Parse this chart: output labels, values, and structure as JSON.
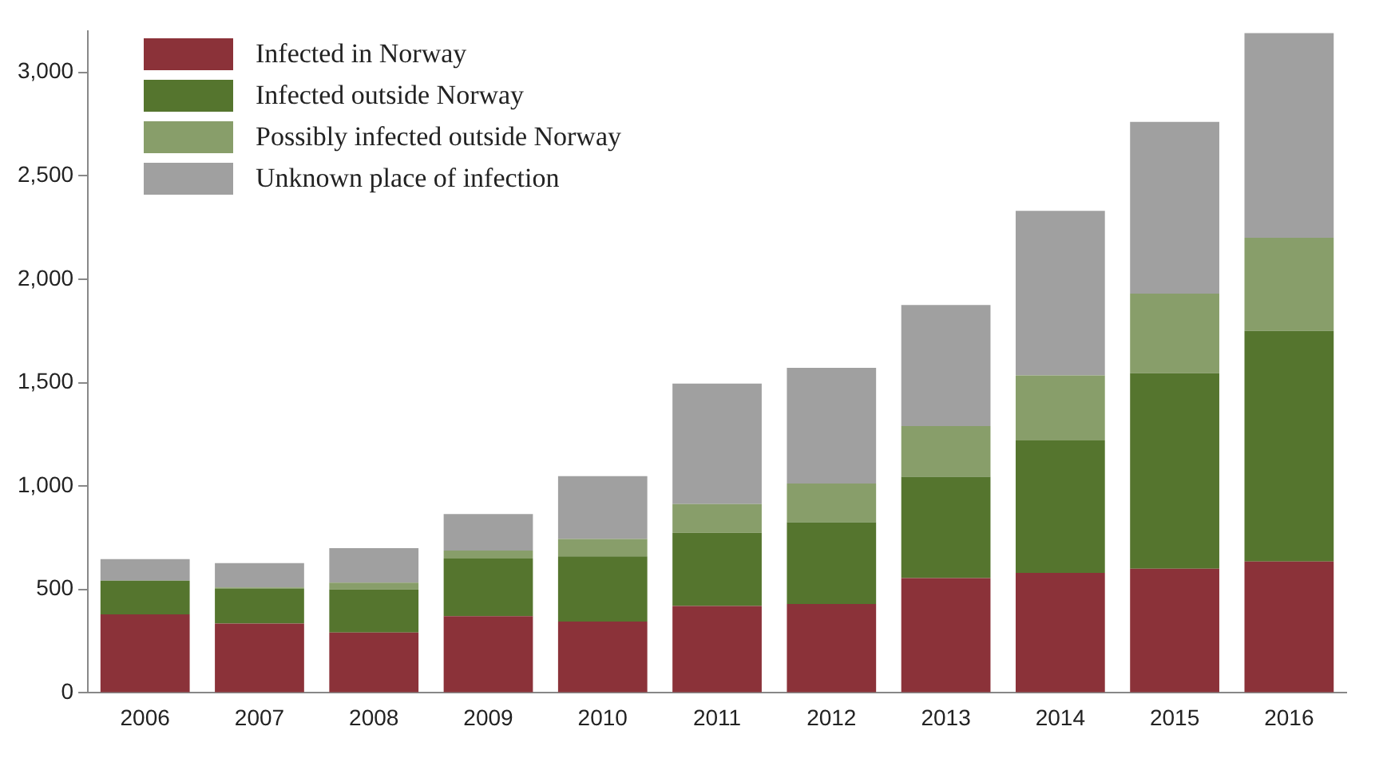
{
  "chart_data": {
    "type": "bar",
    "stacked": true,
    "legend": "top left",
    "grid": false,
    "categories": [
      "2006",
      "2007",
      "2008",
      "2009",
      "2010",
      "2011",
      "2012",
      "2013",
      "2014",
      "2015",
      "2016"
    ],
    "ylim": [
      0,
      3200
    ],
    "yticks": [
      0,
      {
        "value": 500,
        "label": "500"
      },
      {
        "value": 1000,
        "label": "1,000"
      },
      {
        "value": 1500,
        "label": "1,500"
      },
      {
        "value": 2000,
        "label": "2,000"
      },
      {
        "value": 2500,
        "label": "2,500"
      },
      {
        "value": 3000,
        "label": "3,000"
      }
    ],
    "series": [
      {
        "name": "Infected in Norway",
        "color": "#8b3239",
        "values": [
          380,
          335,
          292,
          371,
          345,
          420,
          430,
          555,
          580,
          600,
          635
        ]
      },
      {
        "name": "Infected outside Norway",
        "color": "#55752e",
        "values": [
          163,
          170,
          208,
          279,
          315,
          354,
          395,
          490,
          640,
          945,
          1115
        ]
      },
      {
        "name": "Possibly infected outside Norway",
        "color": "#889e6a",
        "values": [
          0,
          5,
          33,
          38,
          84,
          139,
          187,
          245,
          315,
          385,
          450
        ]
      },
      {
        "name": "Unknown place of infection",
        "color": "#a0a0a0",
        "values": [
          104,
          117,
          167,
          177,
          304,
          582,
          559,
          585,
          795,
          830,
          990
        ]
      }
    ]
  }
}
